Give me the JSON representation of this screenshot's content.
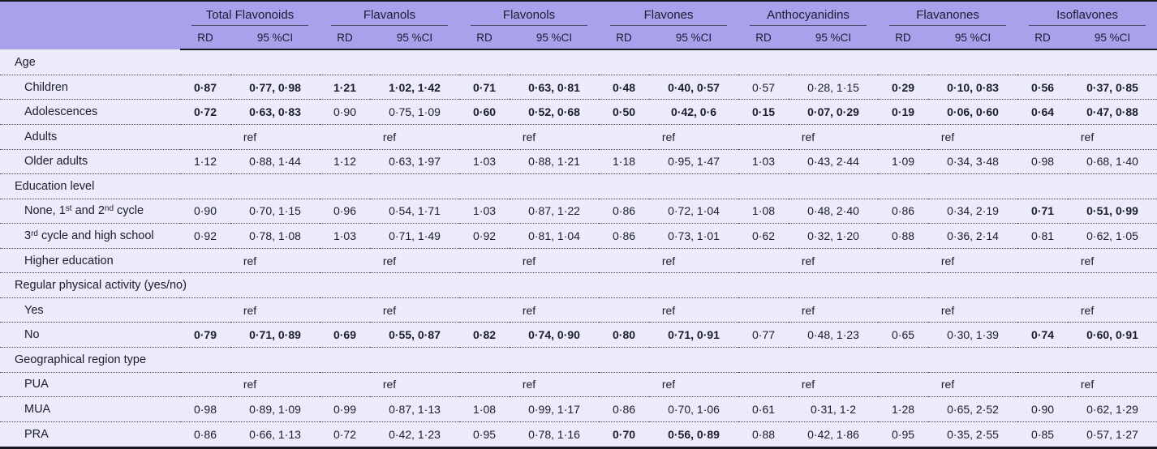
{
  "table": {
    "columns": {
      "groups": [
        "Total Flavonoids",
        "Flavanols",
        "Flavonols",
        "Flavones",
        "Anthocyanidins",
        "Flavanones",
        "Isoflavones"
      ],
      "rd_label": "RD",
      "ci_label": "95 %CI"
    },
    "ref_label": "ref",
    "colors": {
      "header_bg": "#a8a2ed",
      "row_bg": "#ecebf9",
      "text": "#1c1c30",
      "rule": "#17171f"
    },
    "sections": [
      {
        "header": "Age",
        "rows": [
          {
            "label": [
              {
                "t": "Children"
              }
            ],
            "cells": [
              {
                "rd": "0·87",
                "ci": "0·77, 0·98",
                "bold": true
              },
              {
                "rd": "1·21",
                "ci": "1·02, 1·42",
                "bold": true
              },
              {
                "rd": "0·71",
                "ci": "0·63, 0·81",
                "bold": true
              },
              {
                "rd": "0·48",
                "ci": "0·40, 0·57",
                "bold": true
              },
              {
                "rd": "0·57",
                "ci": "0·28, 1·15",
                "bold": false
              },
              {
                "rd": "0·29",
                "ci": "0·10, 0·83",
                "bold": true
              },
              {
                "rd": "0·56",
                "ci": "0·37, 0·85",
                "bold": true
              }
            ]
          },
          {
            "label": [
              {
                "t": "Adolescences"
              }
            ],
            "cells": [
              {
                "rd": "0·72",
                "ci": "0·63, 0·83",
                "bold": true
              },
              {
                "rd": "0·90",
                "ci": "0·75, 1·09",
                "bold": false
              },
              {
                "rd": "0·60",
                "ci": "0·52, 0·68",
                "bold": true
              },
              {
                "rd": "0·50",
                "ci": "0·42, 0·6",
                "bold": true
              },
              {
                "rd": "0·15",
                "ci": "0·07, 0·29",
                "bold": true
              },
              {
                "rd": "0·19",
                "ci": "0·06, 0·60",
                "bold": true
              },
              {
                "rd": "0·64",
                "ci": "0·47, 0·88",
                "bold": true
              }
            ]
          },
          {
            "label": [
              {
                "t": "Adults"
              }
            ],
            "ref": true
          },
          {
            "label": [
              {
                "t": "Older adults"
              }
            ],
            "cells": [
              {
                "rd": "1·12",
                "ci": "0·88, 1·44",
                "bold": false
              },
              {
                "rd": "1·12",
                "ci": "0·63, 1·97",
                "bold": false
              },
              {
                "rd": "1·03",
                "ci": "0·88, 1·21",
                "bold": false
              },
              {
                "rd": "1·18",
                "ci": "0·95, 1·47",
                "bold": false
              },
              {
                "rd": "1·03",
                "ci": "0·43, 2·44",
                "bold": false
              },
              {
                "rd": "1·09",
                "ci": "0·34, 3·48",
                "bold": false
              },
              {
                "rd": "0·98",
                "ci": "0·68, 1·40",
                "bold": false
              }
            ]
          }
        ]
      },
      {
        "header": "Education level",
        "rows": [
          {
            "label": [
              {
                "t": "None, 1"
              },
              {
                "t": "st",
                "sup": true
              },
              {
                "t": " and 2"
              },
              {
                "t": "nd",
                "sup": true
              },
              {
                "t": " cycle"
              }
            ],
            "cells": [
              {
                "rd": "0·90",
                "ci": "0·70, 1·15",
                "bold": false
              },
              {
                "rd": "0·96",
                "ci": "0·54, 1·71",
                "bold": false
              },
              {
                "rd": "1·03",
                "ci": "0·87, 1·22",
                "bold": false
              },
              {
                "rd": "0·86",
                "ci": "0·72, 1·04",
                "bold": false
              },
              {
                "rd": "1·08",
                "ci": "0·48, 2·40",
                "bold": false
              },
              {
                "rd": "0·86",
                "ci": "0·34, 2·19",
                "bold": false
              },
              {
                "rd": "0·71",
                "ci": "0·51, 0·99",
                "bold": true
              }
            ]
          },
          {
            "label": [
              {
                "t": "3"
              },
              {
                "t": "rd",
                "sup": true
              },
              {
                "t": " cycle and high school"
              }
            ],
            "cells": [
              {
                "rd": "0·92",
                "ci": "0·78, 1·08",
                "bold": false
              },
              {
                "rd": "1·03",
                "ci": "0·71, 1·49",
                "bold": false
              },
              {
                "rd": "0·92",
                "ci": "0·81, 1·04",
                "bold": false
              },
              {
                "rd": "0·86",
                "ci": "0·73, 1·01",
                "bold": false
              },
              {
                "rd": "0·62",
                "ci": "0·32, 1·20",
                "bold": false
              },
              {
                "rd": "0·88",
                "ci": "0·36, 2·14",
                "bold": false
              },
              {
                "rd": "0·81",
                "ci": "0·62, 1·05",
                "bold": false
              }
            ]
          },
          {
            "label": [
              {
                "t": "Higher education"
              }
            ],
            "ref": true
          }
        ]
      },
      {
        "header": "Regular physical activity (yes/no)",
        "rows": [
          {
            "label": [
              {
                "t": "Yes"
              }
            ],
            "ref": true
          },
          {
            "label": [
              {
                "t": "No"
              }
            ],
            "cells": [
              {
                "rd": "0·79",
                "ci": "0·71, 0·89",
                "bold": true
              },
              {
                "rd": "0·69",
                "ci": "0·55, 0·87",
                "bold": true
              },
              {
                "rd": "0·82",
                "ci": "0·74, 0·90",
                "bold": true
              },
              {
                "rd": "0·80",
                "ci": "0·71, 0·91",
                "bold": true
              },
              {
                "rd": "0·77",
                "ci": "0·48, 1·23",
                "bold": false
              },
              {
                "rd": "0·65",
                "ci": "0·30, 1·39",
                "bold": false
              },
              {
                "rd": "0·74",
                "ci": "0·60, 0·91",
                "bold": true
              }
            ]
          }
        ]
      },
      {
        "header": "Geographical region type",
        "rows": [
          {
            "label": [
              {
                "t": "PUA"
              }
            ],
            "ref": true
          },
          {
            "label": [
              {
                "t": "MUA"
              }
            ],
            "cells": [
              {
                "rd": "0·98",
                "ci": "0·89, 1·09",
                "bold": false
              },
              {
                "rd": "0·99",
                "ci": "0·87, 1·13",
                "bold": false
              },
              {
                "rd": "1·08",
                "ci": "0·99, 1·17",
                "bold": false
              },
              {
                "rd": "0·86",
                "ci": "0·70, 1·06",
                "bold": false
              },
              {
                "rd": "0·61",
                "ci": "0·31, 1·2",
                "bold": false
              },
              {
                "rd": "1·28",
                "ci": "0·65, 2·52",
                "bold": false
              },
              {
                "rd": "0·90",
                "ci": "0·62, 1·29",
                "bold": false
              }
            ]
          },
          {
            "label": [
              {
                "t": "PRA"
              }
            ],
            "cells": [
              {
                "rd": "0·86",
                "ci": "0·66, 1·13",
                "bold": false
              },
              {
                "rd": "0·72",
                "ci": "0·42, 1·23",
                "bold": false
              },
              {
                "rd": "0·95",
                "ci": "0·78, 1·16",
                "bold": false
              },
              {
                "rd": "0·70",
                "ci": "0·56, 0·89",
                "bold": true
              },
              {
                "rd": "0·88",
                "ci": "0·42, 1·86",
                "bold": false
              },
              {
                "rd": "0·95",
                "ci": "0·35, 2·55",
                "bold": false
              },
              {
                "rd": "0·85",
                "ci": "0·57, 1·27",
                "bold": false
              }
            ]
          }
        ]
      }
    ]
  }
}
